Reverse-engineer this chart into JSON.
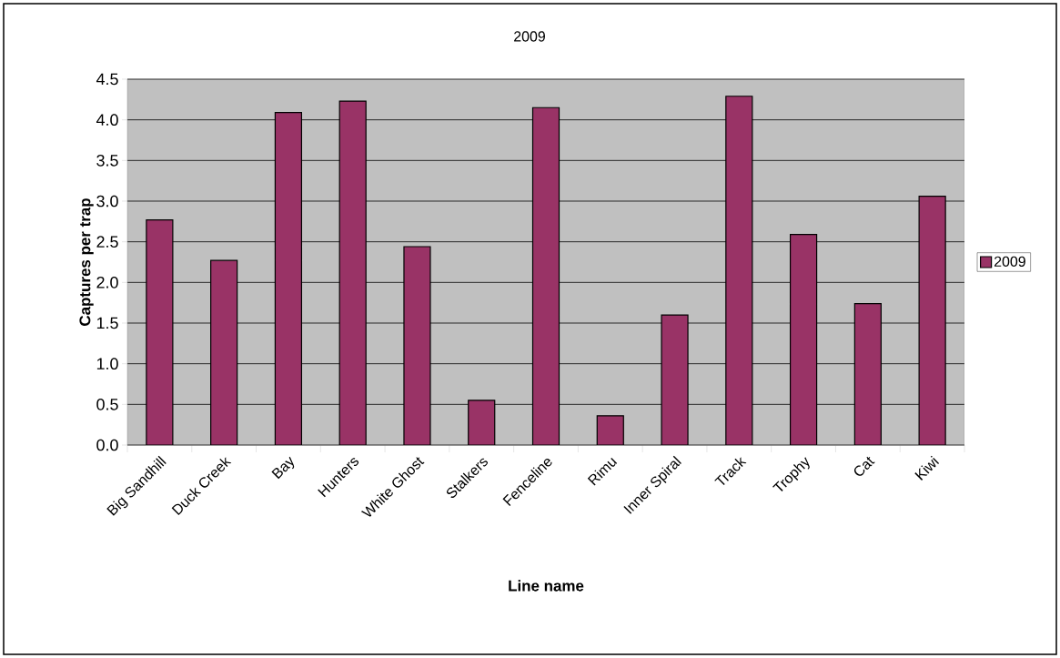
{
  "chart_data": {
    "type": "bar",
    "title": "2009",
    "xlabel": "Line name",
    "ylabel": "Captures per trap",
    "categories": [
      "Big Sandhill",
      "Duck Creek",
      "Bay",
      "Hunters",
      "White Ghost",
      "Stalkers",
      "Fenceline",
      "Rimu",
      "Inner Spiral",
      "Track",
      "Trophy",
      "Cat",
      "Kiwi"
    ],
    "series": [
      {
        "name": "2009",
        "color": "#993366",
        "values": [
          2.77,
          2.27,
          4.09,
          4.23,
          2.44,
          0.55,
          4.15,
          0.36,
          1.6,
          4.29,
          2.59,
          1.74,
          3.06
        ]
      }
    ],
    "ylim": [
      0,
      4.5
    ],
    "yticks": [
      {
        "value": 0,
        "label": "0.0"
      },
      {
        "value": 0.5,
        "label": "0.5"
      },
      {
        "value": 1,
        "label": "1.0"
      },
      {
        "value": 1.5,
        "label": "1.5"
      },
      {
        "value": 2,
        "label": "2.0"
      },
      {
        "value": 2.5,
        "label": "2.5"
      },
      {
        "value": 3,
        "label": "3.0"
      },
      {
        "value": 3.5,
        "label": "3.5"
      },
      {
        "value": 4,
        "label": "4.0"
      },
      {
        "value": 4.5,
        "label": "4.5"
      }
    ],
    "grid": "y",
    "legend": "right"
  }
}
